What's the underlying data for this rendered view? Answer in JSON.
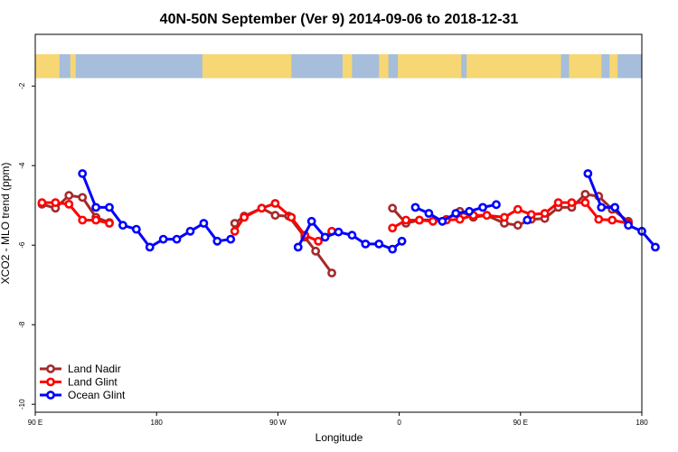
{
  "chart_data": {
    "type": "line",
    "title": "40N-50N September (Ver 9)   2014-09-06 to 2018-12-31",
    "xlabel": "Longitude",
    "ylabel": "XCO2 - MLO trend (ppm)",
    "x_axis": {
      "range": [
        90,
        540
      ],
      "ticks": [
        {
          "value": 90,
          "label": "90 E"
        },
        {
          "value": 180,
          "label": "180"
        },
        {
          "value": 270,
          "label": "90 W"
        },
        {
          "value": 360,
          "label": "0"
        },
        {
          "value": 450,
          "label": "90 E"
        },
        {
          "value": 540,
          "label": "180"
        }
      ]
    },
    "y_axis": {
      "range": [
        -10.2,
        -0.7
      ],
      "ticks": [
        {
          "value": -2,
          "label": "-2"
        },
        {
          "value": -4,
          "label": "-4"
        },
        {
          "value": -6,
          "label": "-6"
        },
        {
          "value": -8,
          "label": "-8"
        },
        {
          "value": -10,
          "label": "-10"
        }
      ]
    },
    "map_band": {
      "y_top": -1.2,
      "y_bottom": -1.8,
      "ocean_color": "#a6bddb",
      "land_color": "#f7d774"
    },
    "legend_position": "bottom-left",
    "grid": false,
    "series": [
      {
        "name": "Land Nadir",
        "color": "#a52a2a",
        "segments": [
          [
            [
              95,
              -4.97
            ],
            [
              105,
              -5.07
            ],
            [
              115,
              -4.75
            ],
            [
              125,
              -4.8
            ],
            [
              135,
              -5.3
            ],
            [
              145,
              -5.43
            ]
          ],
          [
            [
              238,
              -5.45
            ],
            [
              245,
              -5.27
            ],
            [
              258,
              -5.07
            ],
            [
              268,
              -5.25
            ],
            [
              278,
              -5.27
            ],
            [
              290,
              -5.8
            ],
            [
              298,
              -6.15
            ],
            [
              310,
              -6.7
            ]
          ],
          [
            [
              355,
              -5.07
            ],
            [
              365,
              -5.45
            ],
            [
              375,
              -5.37
            ],
            [
              395,
              -5.35
            ],
            [
              405,
              -5.15
            ],
            [
              415,
              -5.3
            ],
            [
              425,
              -5.25
            ],
            [
              438,
              -5.45
            ],
            [
              448,
              -5.5
            ],
            [
              458,
              -5.35
            ],
            [
              468,
              -5.33
            ],
            [
              478,
              -5.05
            ],
            [
              488,
              -5.05
            ],
            [
              498,
              -4.72
            ],
            [
              508,
              -4.77
            ],
            [
              518,
              -5.1
            ],
            [
              530,
              -5.4
            ]
          ]
        ]
      },
      {
        "name": "Land Glint",
        "color": "#ff0000",
        "segments": [
          [
            [
              95,
              -4.93
            ],
            [
              105,
              -4.93
            ],
            [
              115,
              -4.97
            ],
            [
              125,
              -5.37
            ],
            [
              135,
              -5.37
            ],
            [
              145,
              -5.45
            ]
          ],
          [
            [
              238,
              -5.65
            ],
            [
              245,
              -5.3
            ],
            [
              258,
              -5.07
            ],
            [
              268,
              -4.95
            ],
            [
              280,
              -5.3
            ],
            [
              290,
              -5.75
            ],
            [
              300,
              -5.9
            ],
            [
              310,
              -5.65
            ]
          ],
          [
            [
              355,
              -5.57
            ],
            [
              365,
              -5.37
            ],
            [
              375,
              -5.37
            ],
            [
              385,
              -5.4
            ],
            [
              395,
              -5.37
            ],
            [
              405,
              -5.35
            ],
            [
              415,
              -5.25
            ],
            [
              425,
              -5.25
            ],
            [
              438,
              -5.3
            ],
            [
              448,
              -5.1
            ],
            [
              458,
              -5.23
            ],
            [
              468,
              -5.2
            ],
            [
              478,
              -4.93
            ],
            [
              488,
              -4.93
            ],
            [
              498,
              -4.93
            ],
            [
              508,
              -5.35
            ],
            [
              518,
              -5.37
            ],
            [
              530,
              -5.45
            ]
          ]
        ]
      },
      {
        "name": "Ocean Glint",
        "color": "#0000ff",
        "segments": [
          [
            [
              125,
              -4.2
            ],
            [
              135,
              -5.05
            ],
            [
              145,
              -5.05
            ],
            [
              155,
              -5.5
            ],
            [
              165,
              -5.6
            ],
            [
              175,
              -6.05
            ],
            [
              185,
              -5.85
            ],
            [
              195,
              -5.85
            ],
            [
              205,
              -5.65
            ],
            [
              215,
              -5.45
            ],
            [
              225,
              -5.9
            ],
            [
              235,
              -5.85
            ]
          ],
          [
            [
              285,
              -6.05
            ],
            [
              295,
              -5.4
            ],
            [
              305,
              -5.8
            ],
            [
              315,
              -5.67
            ],
            [
              325,
              -5.75
            ],
            [
              335,
              -5.97
            ],
            [
              345,
              -5.97
            ],
            [
              355,
              -6.1
            ],
            [
              362,
              -5.9
            ]
          ],
          [
            [
              372,
              -5.05
            ],
            [
              382,
              -5.2
            ],
            [
              392,
              -5.4
            ],
            [
              402,
              -5.2
            ],
            [
              412,
              -5.15
            ],
            [
              422,
              -5.05
            ],
            [
              432,
              -4.98
            ]
          ],
          [
            [
              455,
              -5.37
            ]
          ],
          [
            [
              500,
              -4.2
            ],
            [
              510,
              -5.05
            ],
            [
              520,
              -5.05
            ],
            [
              530,
              -5.5
            ],
            [
              540,
              -5.65
            ],
            [
              550,
              -6.05
            ]
          ]
        ]
      }
    ]
  }
}
